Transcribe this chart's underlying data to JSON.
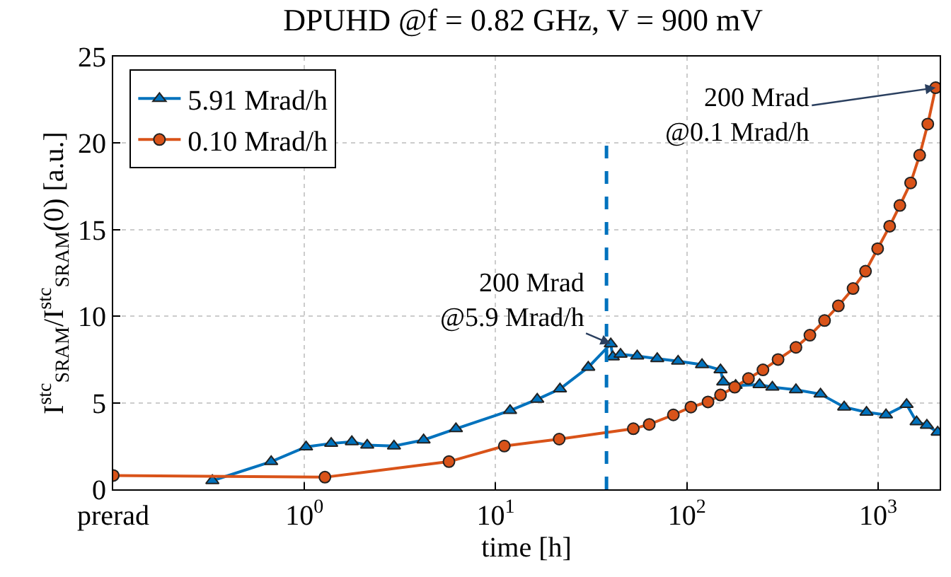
{
  "chart_data": {
    "type": "line",
    "title": "DPUHD @f = 0.82 GHz, V = 900 mV",
    "xlabel": "time [h]",
    "ylabel": "I$^{stc}$$_{SRAM}$/I$^{stc}$$_{SRAM}$(0) [a.u.]",
    "log": "x",
    "xlim": [
      0.1,
      2100
    ],
    "xticks": [
      {
        "value": 0.1,
        "label": "prerad"
      },
      {
        "value": 1,
        "label": "10$^{0}$"
      },
      {
        "value": 10,
        "label": "10$^{1}$"
      },
      {
        "value": 100,
        "label": "10$^{2}$"
      },
      {
        "value": 1000,
        "label": "10$^{3}$"
      }
    ],
    "ylim": [
      0,
      25
    ],
    "yticks": [
      0,
      5,
      10,
      15,
      20,
      25
    ],
    "grid": true,
    "legend": "top left",
    "line_style": "solid",
    "series": [
      {
        "name": "5.91 Mrad/h",
        "color": "#0072bd",
        "marker": "triangle",
        "x": [
          0.33,
          0.67,
          1.02,
          1.38,
          1.77,
          2.13,
          2.94,
          4.2,
          6.2,
          11.9,
          16.5,
          21.7,
          30.5,
          40,
          41,
          45,
          55,
          70,
          90,
          120,
          150,
          155,
          180,
          240,
          280,
          372,
          500,
          665,
          870,
          1100,
          1410,
          1590,
          1800,
          2050
        ],
        "values": [
          0.5,
          1.6,
          2.45,
          2.65,
          2.75,
          2.55,
          2.5,
          2.85,
          3.5,
          4.55,
          5.2,
          5.8,
          7.05,
          8.4,
          7.65,
          7.8,
          7.7,
          7.55,
          7.4,
          7.2,
          6.9,
          6.2,
          6.0,
          6.05,
          5.9,
          5.75,
          5.5,
          4.75,
          4.45,
          4.3,
          4.9,
          3.9,
          3.7,
          3.3
        ]
      },
      {
        "name": "0.10 Mrad/h",
        "color": "#d95319",
        "marker": "circle",
        "x": [
          0.1,
          1.28,
          5.7,
          11.1,
          21.5,
          52.5,
          63.6,
          85,
          105,
          129,
          150,
          178,
          210,
          250,
          300,
          372,
          440,
          525,
          620,
          740,
          860,
          995,
          1150,
          1300,
          1480,
          1650,
          1820,
          2000
        ],
        "values": [
          0.8,
          0.7,
          1.6,
          2.5,
          2.9,
          3.5,
          3.75,
          4.3,
          4.75,
          5.05,
          5.45,
          5.9,
          6.4,
          6.9,
          7.5,
          8.2,
          8.9,
          9.75,
          10.6,
          11.6,
          12.6,
          13.9,
          15.2,
          16.4,
          17.7,
          19.3,
          21.1,
          23.2
        ]
      }
    ],
    "ref_lines": [
      {
        "axis": "x",
        "value": 38,
        "color": "#0072bd",
        "line_style": "dashed"
      }
    ],
    "annotations": [
      {
        "text": "200 Mrad\n@5.9 Mrad/h",
        "x": 40,
        "y": 8.4
      },
      {
        "text": "200 Mrad\n@0.1 Mrad/h",
        "x": 2000,
        "y": 23.2
      }
    ]
  }
}
